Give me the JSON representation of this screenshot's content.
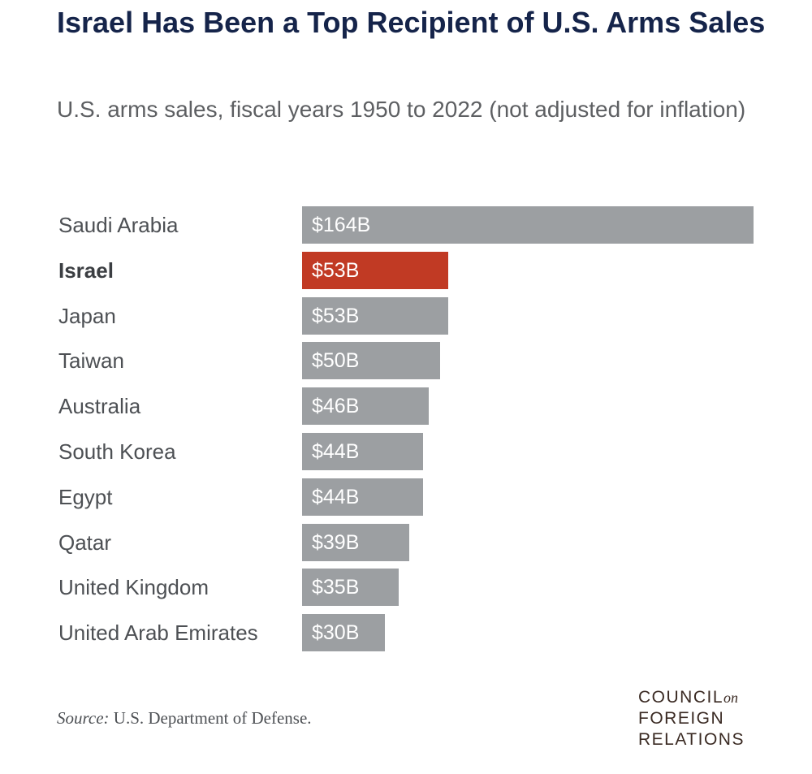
{
  "title": "Israel Has Been a Top Recipient of U.S. Arms Sales",
  "subtitle": "U.S. arms sales, fiscal years 1950 to 2022 (not adjusted for inflation)",
  "source_label": "Source:",
  "source_text": "U.S. Department of Defense.",
  "logo": {
    "line1": "COUNCIL",
    "on": "on",
    "line2": "FOREIGN",
    "line3": "RELATIONS"
  },
  "colors": {
    "default_bar": "#9c9fa2",
    "highlight_bar": "#c13a24"
  },
  "chart_data": {
    "type": "bar",
    "orientation": "horizontal",
    "title": "Israel Has Been a Top Recipient of U.S. Arms Sales",
    "subtitle": "U.S. arms sales, fiscal years 1950 to 2022 (not adjusted for inflation)",
    "categories": [
      "Saudi Arabia",
      "Israel",
      "Japan",
      "Taiwan",
      "Australia",
      "South Korea",
      "Egypt",
      "Qatar",
      "United Kingdom",
      "United Arab Emirates"
    ],
    "values": [
      164,
      53,
      53,
      50,
      46,
      44,
      44,
      39,
      35,
      30
    ],
    "value_labels": [
      "$164B",
      "$53B",
      "$53B",
      "$50B",
      "$46B",
      "$44B",
      "$44B",
      "$39B",
      "$35B",
      "$30B"
    ],
    "units": "billions of US dollars",
    "highlight": "Israel",
    "xlim": [
      0,
      164
    ],
    "grid": false,
    "legend": "none"
  }
}
